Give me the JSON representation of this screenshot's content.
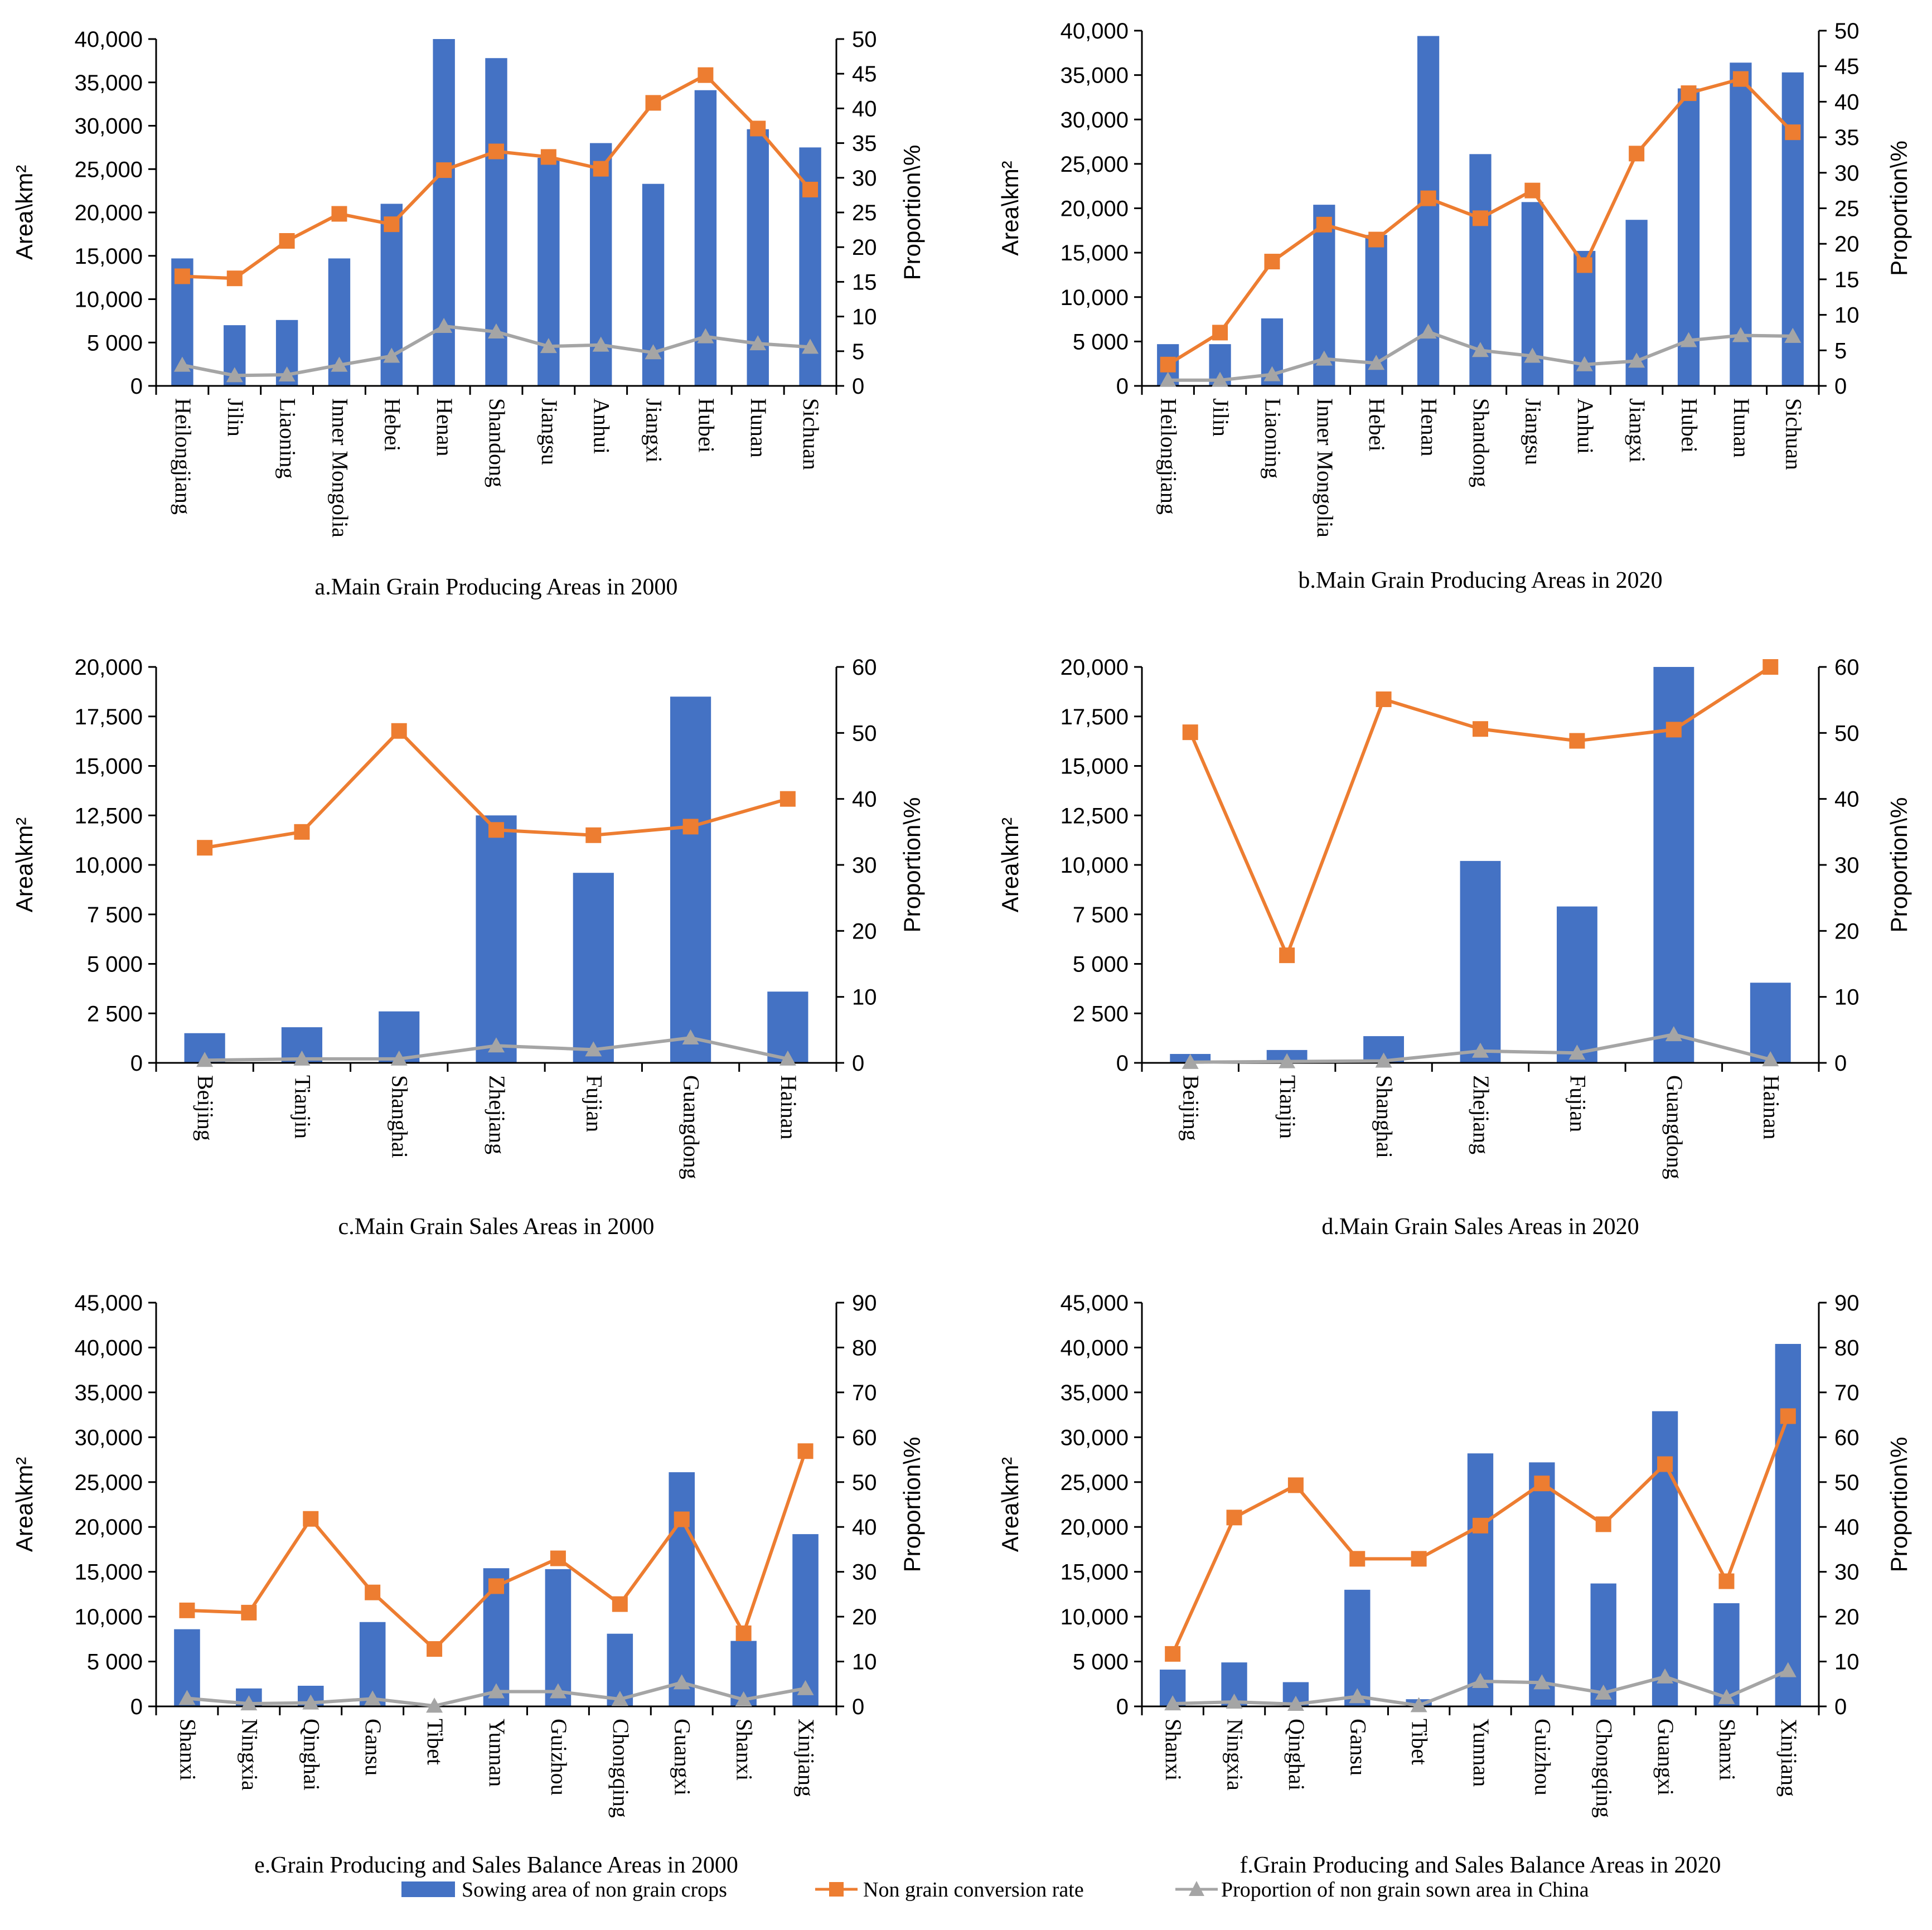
{
  "legend": {
    "bar_label": "Sowing area of non grain crops",
    "line1_label": "Non grain conversion rate",
    "line2_label": "Proportion of non grain sown area in China"
  },
  "colors": {
    "bar": "#4472C4",
    "line1": "#ED7D31",
    "line2": "#A5A5A5",
    "axis": "#000000",
    "grid": "#D9D9D9"
  },
  "chart_data": [
    {
      "id": "a",
      "type": "bar+line",
      "title": "a.Main Grain Producing Areas in 2000",
      "ylabel": "Area\\km²",
      "y2label": "Proportion\\%",
      "ylim": [
        0,
        40000
      ],
      "yticks": [
        0,
        5000,
        10000,
        15000,
        20000,
        25000,
        30000,
        35000,
        40000
      ],
      "yticklabels": [
        "0",
        "5 000",
        "10,000",
        "15,000",
        "20,000",
        "25,000",
        "30,000",
        "35,000",
        "40,000"
      ],
      "y2lim": [
        0,
        50
      ],
      "y2ticks": [
        0,
        5,
        10,
        15,
        20,
        25,
        30,
        35,
        40,
        45,
        50
      ],
      "categories": [
        "Heilongjiang",
        "Jilin",
        "Liaoning",
        "Inner Mongolia",
        "Hebei",
        "Henan",
        "Shandong",
        "Jiangsu",
        "Anhui",
        "Jiangxi",
        "Hubei",
        "Hunan",
        "Sichuan"
      ],
      "bars": [
        14700,
        7000,
        7600,
        14700,
        21000,
        41000,
        37800,
        26300,
        28000,
        23300,
        34100,
        29600,
        27500
      ],
      "line1": [
        15.8,
        15.5,
        20.9,
        24.8,
        23.3,
        31.1,
        33.8,
        33.0,
        31.3,
        40.8,
        44.8,
        37.1,
        28.3
      ],
      "line2": [
        3.0,
        1.5,
        1.6,
        3.0,
        4.3,
        8.6,
        7.8,
        5.7,
        5.9,
        4.8,
        7.1,
        6.1,
        5.6
      ]
    },
    {
      "id": "b",
      "type": "bar+line",
      "title": "b.Main Grain Producing Areas in 2020",
      "ylabel": "Area\\km²",
      "y2label": "Proportion\\%",
      "ylim": [
        0,
        40000
      ],
      "yticks": [
        0,
        5000,
        10000,
        15000,
        20000,
        25000,
        30000,
        35000,
        40000
      ],
      "yticklabels": [
        "0",
        "5 000",
        "10,000",
        "15,000",
        "20,000",
        "25,000",
        "30,000",
        "35,000",
        "40,000"
      ],
      "y2lim": [
        0,
        50
      ],
      "y2ticks": [
        0,
        5,
        10,
        15,
        20,
        25,
        30,
        35,
        40,
        45,
        50
      ],
      "categories": [
        "Heilongjiang",
        "Jilin",
        "Liaoning",
        "Inner Mongolia",
        "Hebei",
        "Henan",
        "Shandong",
        "Jiangsu",
        "Anhui",
        "Jiangxi",
        "Hubei",
        "Hunan",
        "Sichuan"
      ],
      "bars": [
        4700,
        4700,
        7600,
        20400,
        17000,
        39400,
        26100,
        20700,
        15200,
        18700,
        33500,
        36400,
        35300
      ],
      "line1": [
        3.0,
        7.5,
        17.5,
        22.7,
        20.6,
        26.4,
        23.6,
        27.5,
        17.0,
        32.7,
        41.2,
        43.2,
        35.7
      ],
      "line2": [
        0.8,
        0.8,
        1.6,
        3.8,
        3.2,
        7.6,
        5.0,
        4.2,
        3.0,
        3.5,
        6.4,
        7.1,
        7.0
      ]
    },
    {
      "id": "c",
      "type": "bar+line",
      "title": "c.Main Grain Sales Areas in 2000",
      "ylabel": "Area\\km²",
      "y2label": "Proportion\\%",
      "ylim": [
        0,
        20000
      ],
      "yticks": [
        0,
        2500,
        5000,
        7500,
        10000,
        12500,
        15000,
        17500,
        20000
      ],
      "yticklabels": [
        "0",
        "2 500",
        "5 000",
        "7 500",
        "10,000",
        "12,500",
        "15,000",
        "17,500",
        "20,000"
      ],
      "y2lim": [
        0,
        60
      ],
      "y2ticks": [
        0,
        10,
        20,
        30,
        40,
        50,
        60
      ],
      "categories": [
        "Beijing",
        "Tianjin",
        "Shanghai",
        "Zhejiang",
        "Fujian",
        "Guangdong",
        "Hainan"
      ],
      "bars": [
        1500,
        1800,
        2600,
        12500,
        9600,
        18500,
        3600
      ],
      "line1": [
        32.6,
        35.0,
        50.3,
        35.3,
        34.5,
        35.8,
        40.0
      ],
      "line2": [
        0.4,
        0.6,
        0.6,
        2.6,
        2.0,
        3.8,
        0.6
      ]
    },
    {
      "id": "d",
      "type": "bar+line",
      "title": "d.Main Grain Sales Areas in 2020",
      "ylabel": "Area\\km²",
      "y2label": "Proportion\\%",
      "ylim": [
        0,
        20000
      ],
      "yticks": [
        0,
        2500,
        5000,
        7500,
        10000,
        12500,
        15000,
        17500,
        20000
      ],
      "yticklabels": [
        "0",
        "2 500",
        "5 000",
        "7 500",
        "10,000",
        "12,500",
        "15,000",
        "17,500",
        "20,000"
      ],
      "y2lim": [
        0,
        60
      ],
      "y2ticks": [
        0,
        10,
        20,
        30,
        40,
        50,
        60
      ],
      "categories": [
        "Beijing",
        "Tianjin",
        "Shanghai",
        "Zhejiang",
        "Fujian",
        "Guangdong",
        "Hainan"
      ],
      "bars": [
        450,
        650,
        1350,
        10200,
        7900,
        20000,
        4050
      ],
      "line1": [
        50.1,
        16.3,
        55.1,
        50.6,
        48.8,
        50.5,
        60.0
      ],
      "line2": [
        0.1,
        0.2,
        0.3,
        1.8,
        1.5,
        4.3,
        0.5
      ]
    },
    {
      "id": "e",
      "type": "bar+line",
      "title": "e.Grain Producing and Sales Balance Areas in 2000",
      "ylabel": "Area\\km²",
      "y2label": "Proportion\\%",
      "ylim": [
        0,
        45000
      ],
      "yticks": [
        0,
        5000,
        10000,
        15000,
        20000,
        25000,
        30000,
        35000,
        40000,
        45000
      ],
      "yticklabels": [
        "0",
        "5 000",
        "10,000",
        "15,000",
        "20,000",
        "25,000",
        "30,000",
        "35,000",
        "40,000",
        "45,000"
      ],
      "y2lim": [
        0,
        90
      ],
      "y2ticks": [
        0,
        10,
        20,
        30,
        40,
        50,
        60,
        70,
        80,
        90
      ],
      "categories": [
        "Shanxi",
        "Ningxia",
        "Qinghai",
        "Gansu",
        "Tibet",
        "Yunnan",
        "Guizhou",
        "Chongqing",
        "Guangxi",
        "Shanxi",
        "Xinjiang"
      ],
      "bars": [
        8600,
        2000,
        2300,
        9400,
        0,
        15400,
        15300,
        8100,
        26100,
        7300,
        19200
      ],
      "line1": [
        21.4,
        20.9,
        41.8,
        25.4,
        12.8,
        26.8,
        33.0,
        22.8,
        41.7,
        16.3,
        56.9
      ],
      "line2": [
        1.8,
        0.6,
        0.8,
        1.7,
        0.1,
        3.3,
        3.3,
        1.6,
        5.3,
        1.5,
        4.0
      ]
    },
    {
      "id": "f",
      "type": "bar+line",
      "title": "f.Grain Producing and Sales Balance Areas in 2020",
      "ylabel": "Area\\km²",
      "y2label": "Proportion\\%",
      "ylim": [
        0,
        45000
      ],
      "yticks": [
        0,
        5000,
        10000,
        15000,
        20000,
        25000,
        30000,
        35000,
        40000,
        45000
      ],
      "yticklabels": [
        "0",
        "5 000",
        "10,000",
        "15,000",
        "20,000",
        "25,000",
        "30,000",
        "35,000",
        "40,000",
        "45,000"
      ],
      "y2lim": [
        0,
        90
      ],
      "y2ticks": [
        0,
        10,
        20,
        30,
        40,
        50,
        60,
        70,
        80,
        90
      ],
      "categories": [
        "Shanxi",
        "Ningxia",
        "Qinghai",
        "Gansu",
        "Tibet",
        "Yunnan",
        "Guizhou",
        "Chongqing",
        "Guangxi",
        "Shanxi",
        "Xinjiang"
      ],
      "bars": [
        4100,
        4900,
        2700,
        13000,
        800,
        28200,
        27200,
        13700,
        32900,
        11500,
        40400
      ],
      "line1": [
        11.7,
        42.1,
        49.3,
        32.9,
        32.9,
        40.3,
        49.7,
        40.6,
        54.0,
        27.9,
        64.7
      ],
      "line2": [
        0.6,
        1.0,
        0.5,
        2.2,
        0.2,
        5.6,
        5.3,
        3.0,
        6.6,
        2.0,
        8.0
      ]
    }
  ]
}
